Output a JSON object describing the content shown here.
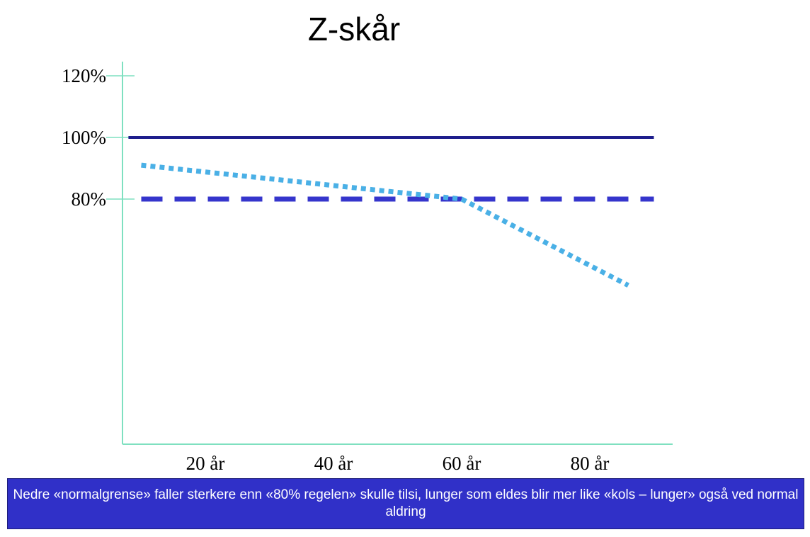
{
  "caption": "Nedre «normalgrense» faller sterkere enn «80% regelen» skulle tilsi, lunger som eldes blir mer like «kols – lunger» også ved normal aldring",
  "chart_data": {
    "type": "line",
    "title": "Z-skår",
    "xlabel": "",
    "ylabel": "",
    "x_categories": [
      "20 år",
      "40 år",
      "60 år",
      "80 år"
    ],
    "x_tick_values": [
      20,
      40,
      60,
      80
    ],
    "y_tick_labels": [
      "120%",
      "100%",
      "80%"
    ],
    "y_tick_values": [
      120,
      100,
      80
    ],
    "series": [
      {
        "style": "solid",
        "color": "#1e1e8c",
        "points": [
          [
            8,
            100
          ],
          [
            90,
            100
          ]
        ]
      },
      {
        "style": "dashed",
        "color": "#3535cc",
        "points": [
          [
            10,
            80
          ],
          [
            90,
            80
          ]
        ]
      },
      {
        "style": "dotted",
        "color": "#4ab0e6",
        "points": [
          [
            10,
            91
          ],
          [
            60,
            80
          ],
          [
            86,
            52
          ]
        ]
      }
    ],
    "colors": {
      "axis": "#7fe0c0"
    }
  }
}
